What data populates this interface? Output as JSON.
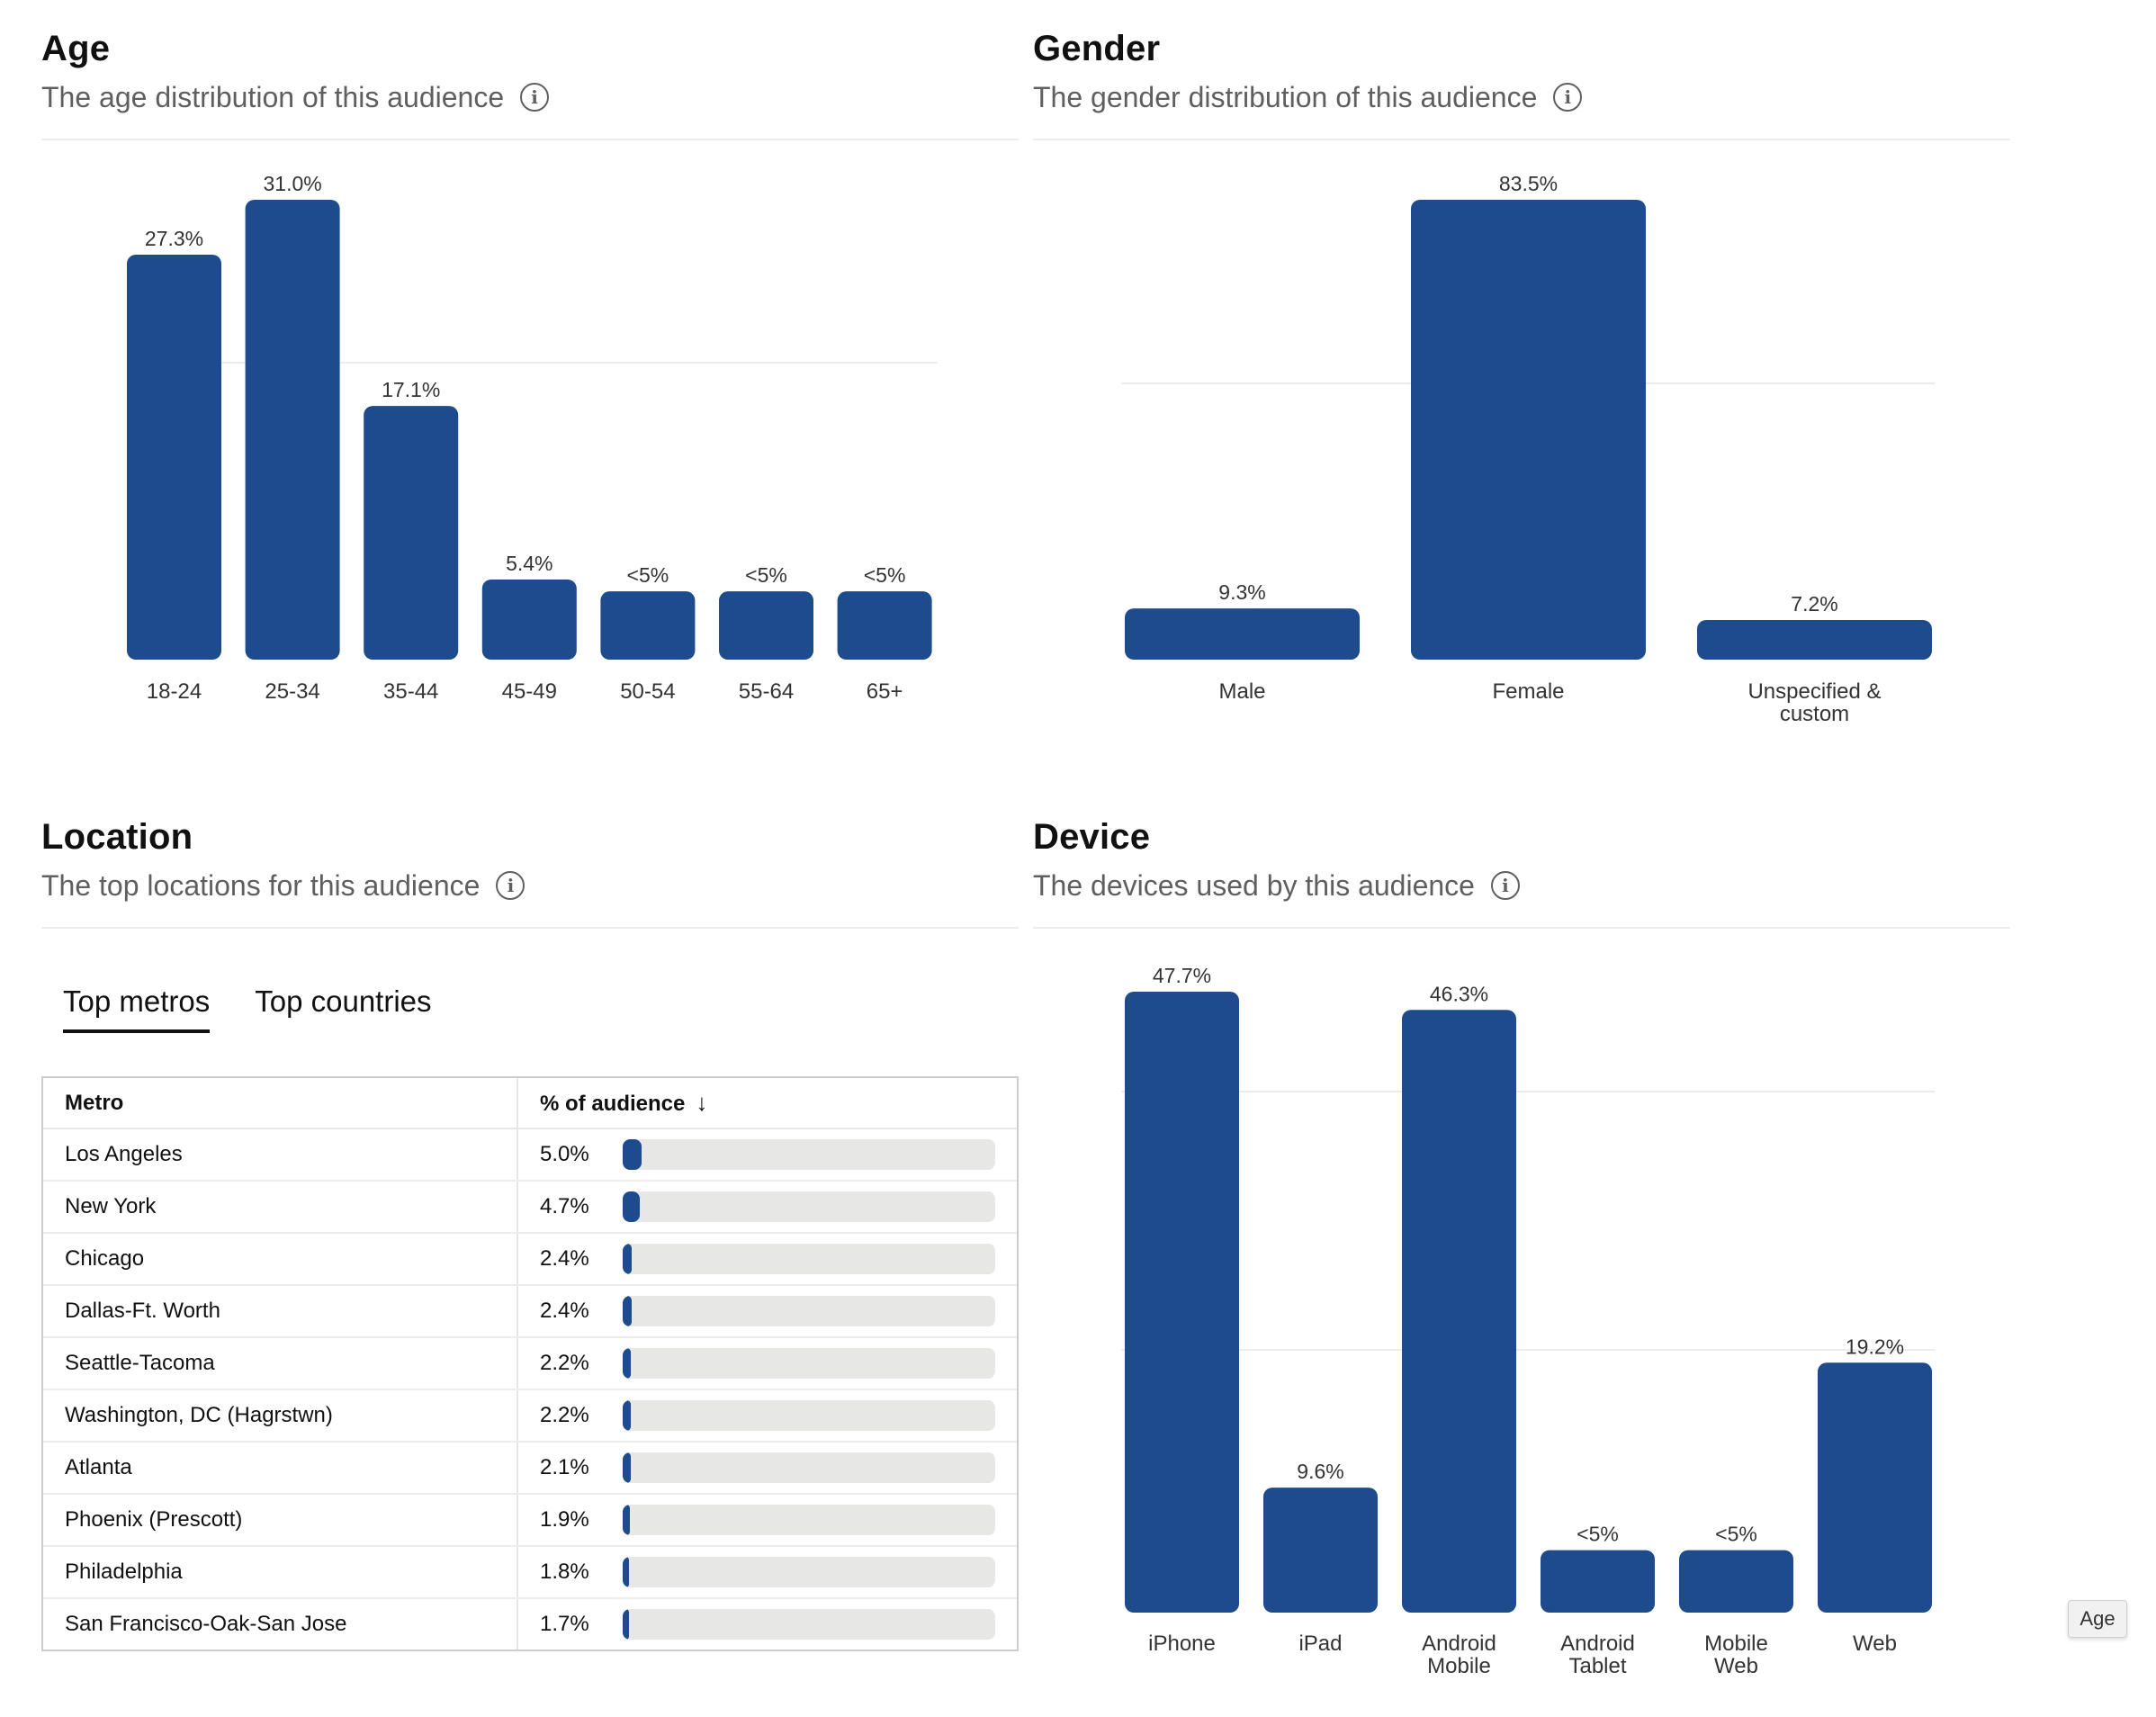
{
  "age": {
    "title": "Age",
    "subtitle": "The age distribution of this audience",
    "info_icon": "info-icon",
    "chart_data": {
      "type": "bar",
      "categories": [
        "18-24",
        "25-34",
        "35-44",
        "45-49",
        "50-54",
        "55-64",
        "65+"
      ],
      "values": [
        27.3,
        31.0,
        17.1,
        5.4,
        4.6,
        4.6,
        4.6
      ],
      "labels": [
        "27.3%",
        "31.0%",
        "17.1%",
        "5.4%",
        "<5%",
        "<5%",
        "<5%"
      ],
      "ylim": [
        0,
        31.0
      ],
      "grid": true
    }
  },
  "gender": {
    "title": "Gender",
    "subtitle": "The gender distribution of this audience",
    "info_icon": "info-icon",
    "chart_data": {
      "type": "bar",
      "categories": [
        "Male",
        "Female",
        "Unspecified & custom"
      ],
      "category_lines": [
        [
          "Male"
        ],
        [
          "Female"
        ],
        [
          "Unspecified &",
          "custom"
        ]
      ],
      "values": [
        9.3,
        83.5,
        7.2
      ],
      "labels": [
        "9.3%",
        "83.5%",
        "7.2%"
      ],
      "ylim": [
        0,
        83.5
      ],
      "grid": true
    }
  },
  "location": {
    "title": "Location",
    "subtitle": "The top locations for this audience",
    "info_icon": "info-icon",
    "tabs": [
      {
        "label": "Top metros",
        "active": true
      },
      {
        "label": "Top countries",
        "active": false
      }
    ],
    "table": {
      "headers": {
        "metro": "Metro",
        "pct": "% of audience",
        "sort_icon": "arrow-down-icon"
      },
      "rows": [
        {
          "metro": "Los Angeles",
          "pct": "5.0%",
          "value": 5.0
        },
        {
          "metro": "New York",
          "pct": "4.7%",
          "value": 4.7
        },
        {
          "metro": "Chicago",
          "pct": "2.4%",
          "value": 2.4
        },
        {
          "metro": "Dallas-Ft. Worth",
          "pct": "2.4%",
          "value": 2.4
        },
        {
          "metro": "Seattle-Tacoma",
          "pct": "2.2%",
          "value": 2.2
        },
        {
          "metro": "Washington, DC (Hagrstwn)",
          "pct": "2.2%",
          "value": 2.2
        },
        {
          "metro": "Atlanta",
          "pct": "2.1%",
          "value": 2.1
        },
        {
          "metro": "Phoenix (Prescott)",
          "pct": "1.9%",
          "value": 1.9
        },
        {
          "metro": "Philadelphia",
          "pct": "1.8%",
          "value": 1.8
        },
        {
          "metro": "San Francisco-Oak-San Jose",
          "pct": "1.7%",
          "value": 1.7
        }
      ]
    }
  },
  "device": {
    "title": "Device",
    "subtitle": "The devices used by this audience",
    "info_icon": "info-icon",
    "chart_data": {
      "type": "bar",
      "categories": [
        "iPhone",
        "iPad",
        "Android Mobile",
        "Android Tablet",
        "Mobile Web",
        "Web"
      ],
      "category_lines": [
        [
          "iPhone"
        ],
        [
          "iPad"
        ],
        [
          "Android",
          "Mobile"
        ],
        [
          "Android",
          "Tablet"
        ],
        [
          "Mobile",
          "Web"
        ],
        [
          "Web"
        ]
      ],
      "values": [
        47.7,
        9.6,
        46.3,
        4.8,
        4.8,
        19.2
      ],
      "labels": [
        "47.7%",
        "9.6%",
        "46.3%",
        "<5%",
        "<5%",
        "19.2%"
      ],
      "ylim": [
        0,
        47.7
      ],
      "grid": true
    }
  },
  "tooltip": {
    "label": "Age"
  },
  "colors": {
    "bar": "#1d4b8c",
    "grid": "#ececec",
    "track": "#e7e7e5"
  }
}
